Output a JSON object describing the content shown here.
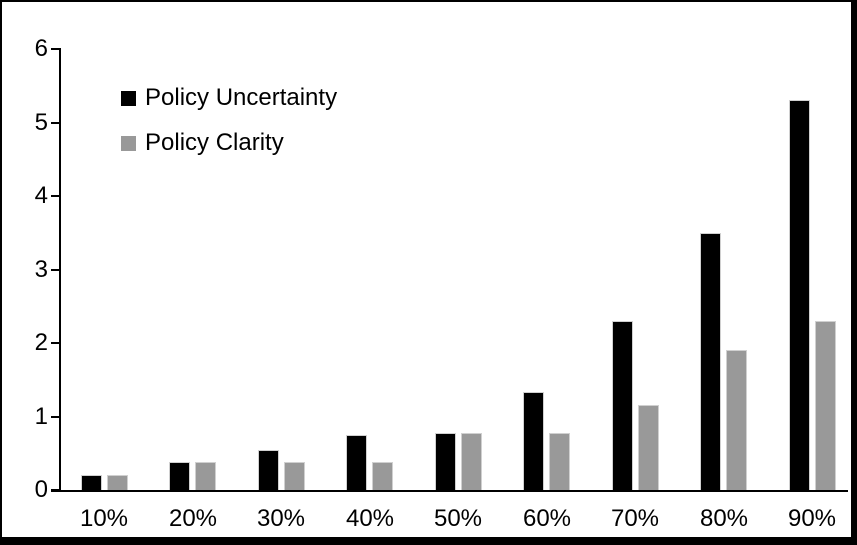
{
  "chart_data": {
    "type": "bar",
    "title": "",
    "xlabel": "",
    "ylabel": "",
    "categories": [
      "10%",
      "20%",
      "30%",
      "40%",
      "50%",
      "60%",
      "70%",
      "80%",
      "90%"
    ],
    "series": [
      {
        "name": "Policy Uncertainty",
        "color": "#000000",
        "values": [
          0.2,
          0.38,
          0.55,
          0.75,
          0.77,
          1.33,
          2.3,
          3.5,
          5.3
        ]
      },
      {
        "name": "Policy Clarity",
        "color": "#999999",
        "values": [
          0.2,
          0.38,
          0.38,
          0.38,
          0.77,
          0.77,
          1.15,
          1.9,
          2.3
        ]
      }
    ],
    "ylim": [
      0,
      6
    ],
    "yticks": [
      0,
      1,
      2,
      3,
      4,
      5,
      6
    ],
    "grid": false,
    "legend_position": "top-left",
    "colors": {
      "axis": "#000000",
      "background": "#ffffff",
      "frame_border": "#000000"
    }
  }
}
